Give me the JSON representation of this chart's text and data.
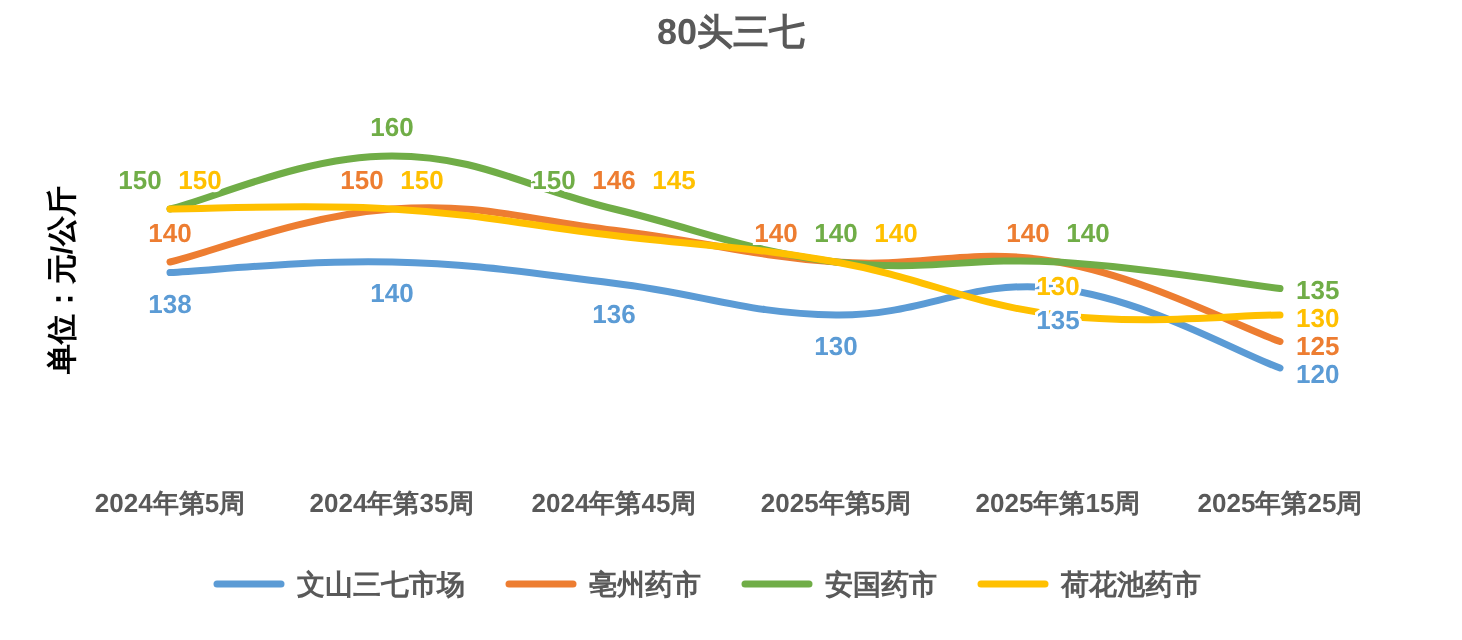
{
  "chart_data": {
    "type": "line",
    "title": "80头三七",
    "ylabel": "单位：元/公斤",
    "categories": [
      "2024年第5周",
      "2024年第35周",
      "2024年第45周",
      "2025年第5周",
      "2025年第15周",
      "2025年第25周"
    ],
    "series": [
      {
        "name": "文山三七市场",
        "color": "#5b9bd5",
        "values": [
          138,
          140,
          136,
          130,
          135,
          120
        ]
      },
      {
        "name": "亳州药市",
        "color": "#ed7d31",
        "values": [
          140,
          150,
          146,
          140,
          140,
          125
        ]
      },
      {
        "name": "安国药市",
        "color": "#70ad47",
        "values": [
          150,
          160,
          150,
          140,
          140,
          135
        ]
      },
      {
        "name": "荷花池药市",
        "color": "#ffc000",
        "values": [
          150,
          150,
          145,
          140,
          130,
          130
        ]
      }
    ],
    "data_labels": true,
    "legend": "bottom",
    "grid": false,
    "marker": "none",
    "line_style": "solid"
  }
}
